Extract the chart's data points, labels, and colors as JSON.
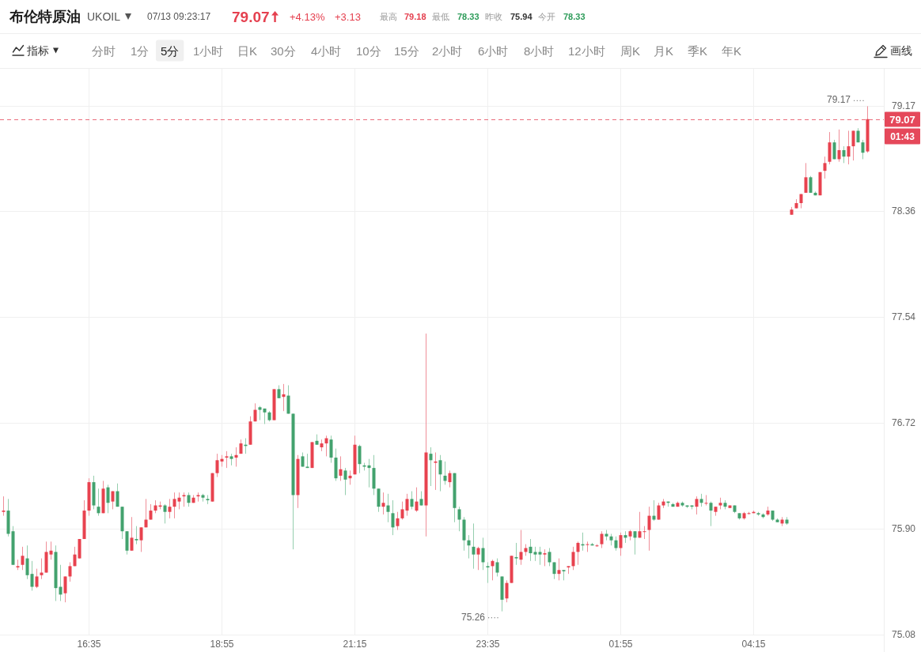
{
  "chart_data": {
    "type": "candlestick",
    "title": "布伦特原油",
    "subtitle": "UKOIL",
    "categories": [
      null,
      null,
      null,
      null,
      null,
      null,
      null,
      null,
      null,
      null,
      null,
      null,
      null,
      null,
      null,
      null,
      null,
      null,
      "16:35",
      null,
      null,
      null,
      null,
      null,
      null,
      null,
      null,
      null,
      null,
      null,
      null,
      null,
      null,
      null,
      null,
      null,
      null,
      null,
      null,
      null,
      null,
      null,
      null,
      null,
      null,
      null,
      "18:55",
      null,
      null,
      null,
      null,
      null,
      null,
      null,
      null,
      null,
      null,
      null,
      null,
      null,
      null,
      null,
      null,
      null,
      null,
      null,
      null,
      null,
      null,
      null,
      null,
      null,
      null,
      null,
      "21:15",
      null,
      null,
      null,
      null,
      null,
      null,
      null,
      null,
      null,
      null,
      null,
      null,
      null,
      null,
      null,
      null,
      null,
      null,
      null,
      null,
      null,
      null,
      null,
      null,
      null,
      null,
      null,
      "23:35",
      null,
      null,
      null,
      null,
      null,
      null,
      null,
      null,
      null,
      null,
      null,
      null,
      null,
      null,
      null,
      null,
      null,
      null,
      null,
      null,
      null,
      null,
      null,
      null,
      null,
      null,
      null,
      "01:55",
      null,
      null,
      null,
      null,
      null,
      null,
      null,
      null,
      null,
      null,
      null,
      null,
      null,
      null,
      null,
      null,
      null,
      null,
      null,
      null,
      null,
      null,
      null,
      null,
      null,
      null,
      null,
      "04:15",
      null,
      null,
      null,
      null,
      null,
      null,
      null,
      null,
      null,
      null,
      null,
      null,
      null,
      null,
      null,
      null,
      null,
      null,
      null,
      null,
      null,
      null,
      null,
      null
    ],
    "ohlc": [
      [
        76.03,
        76.15,
        76.0,
        76.04
      ],
      [
        76.04,
        76.13,
        75.84,
        75.86
      ],
      [
        75.88,
        75.92,
        75.62,
        75.62
      ],
      [
        75.6,
        75.66,
        75.58,
        75.61
      ],
      [
        75.62,
        75.76,
        75.58,
        75.69
      ],
      [
        75.67,
        75.77,
        75.51,
        75.54
      ],
      [
        75.55,
        75.65,
        75.42,
        75.45
      ],
      [
        75.45,
        75.59,
        75.44,
        75.53
      ],
      [
        75.54,
        75.67,
        75.51,
        75.56
      ],
      [
        75.56,
        75.8,
        75.56,
        75.72
      ],
      [
        75.7,
        75.8,
        75.66,
        75.73
      ],
      [
        75.72,
        75.77,
        75.34,
        75.44
      ],
      [
        75.45,
        75.62,
        75.34,
        75.39
      ],
      [
        75.4,
        75.53,
        75.33,
        75.53
      ],
      [
        75.53,
        75.64,
        75.49,
        75.61
      ],
      [
        75.61,
        75.76,
        75.61,
        75.7
      ],
      [
        75.67,
        75.82,
        75.67,
        75.82
      ],
      [
        75.82,
        76.12,
        75.82,
        76.04
      ],
      [
        76.04,
        76.29,
        76.0,
        76.26
      ],
      [
        76.26,
        76.31,
        76.05,
        76.08
      ],
      [
        76.07,
        76.21,
        76.0,
        76.02
      ],
      [
        76.02,
        76.27,
        76.02,
        76.21
      ],
      [
        76.22,
        76.24,
        76.02,
        76.1
      ],
      [
        76.11,
        76.19,
        76.05,
        76.19
      ],
      [
        76.19,
        76.25,
        76.07,
        76.07
      ],
      [
        76.07,
        76.07,
        75.82,
        75.88
      ],
      [
        75.88,
        75.88,
        75.7,
        75.73
      ],
      [
        75.73,
        75.99,
        75.73,
        75.83
      ],
      [
        75.82,
        75.92,
        75.78,
        75.81
      ],
      [
        75.81,
        75.91,
        75.72,
        75.91
      ],
      [
        75.91,
        76.13,
        75.91,
        75.97
      ],
      [
        75.97,
        76.09,
        75.97,
        76.04
      ],
      [
        76.04,
        76.12,
        76.02,
        76.08
      ],
      [
        76.07,
        76.11,
        76.05,
        76.08
      ],
      [
        76.08,
        76.09,
        75.94,
        76.03
      ],
      [
        76.03,
        76.13,
        75.98,
        76.07
      ],
      [
        76.07,
        76.18,
        75.98,
        76.13
      ],
      [
        76.11,
        76.18,
        76.05,
        76.14
      ],
      [
        76.15,
        76.18,
        76.07,
        76.16
      ],
      [
        76.16,
        76.18,
        76.07,
        76.1
      ],
      [
        76.1,
        76.16,
        76.1,
        76.14
      ],
      [
        76.15,
        76.18,
        76.11,
        76.16
      ],
      [
        76.16,
        76.17,
        76.11,
        76.14
      ],
      [
        76.13,
        76.16,
        76.09,
        76.12
      ],
      [
        76.11,
        76.33,
        76.11,
        76.33
      ],
      [
        76.33,
        76.48,
        76.3,
        76.43
      ],
      [
        76.42,
        76.47,
        76.38,
        76.44
      ],
      [
        76.45,
        76.5,
        76.37,
        76.46
      ],
      [
        76.46,
        76.48,
        76.39,
        76.44
      ],
      [
        76.45,
        76.53,
        76.38,
        76.47
      ],
      [
        76.48,
        76.59,
        76.48,
        76.56
      ],
      [
        76.55,
        76.6,
        76.48,
        76.54
      ],
      [
        76.55,
        76.77,
        76.55,
        76.73
      ],
      [
        76.73,
        76.87,
        76.73,
        76.82
      ],
      [
        76.84,
        76.85,
        76.74,
        76.82
      ],
      [
        76.83,
        76.83,
        76.71,
        76.8
      ],
      [
        76.8,
        76.81,
        76.73,
        76.74
      ],
      [
        76.74,
        76.98,
        76.74,
        76.98
      ],
      [
        76.98,
        77.01,
        76.91,
        76.91
      ],
      [
        76.92,
        77.02,
        76.81,
        76.94
      ],
      [
        76.93,
        77.01,
        76.79,
        76.79
      ],
      [
        76.79,
        76.79,
        75.74,
        76.16
      ],
      [
        76.16,
        76.47,
        76.06,
        76.44
      ],
      [
        76.46,
        76.49,
        76.38,
        76.38
      ],
      [
        76.38,
        76.48,
        76.37,
        76.37
      ],
      [
        76.37,
        76.57,
        76.37,
        76.57
      ],
      [
        76.58,
        76.63,
        76.55,
        76.55
      ],
      [
        76.53,
        76.59,
        76.5,
        76.56
      ],
      [
        76.56,
        76.62,
        76.46,
        76.6
      ],
      [
        76.59,
        76.62,
        76.41,
        76.45
      ],
      [
        76.45,
        76.52,
        76.27,
        76.29
      ],
      [
        76.31,
        76.46,
        76.27,
        76.36
      ],
      [
        76.35,
        76.37,
        76.16,
        76.28
      ],
      [
        76.29,
        76.35,
        76.24,
        76.31
      ],
      [
        76.32,
        76.62,
        76.32,
        76.55
      ],
      [
        76.54,
        76.55,
        76.33,
        76.4
      ],
      [
        76.39,
        76.41,
        76.35,
        76.38
      ],
      [
        76.39,
        76.44,
        76.22,
        76.37
      ],
      [
        76.37,
        76.47,
        76.16,
        76.21
      ],
      [
        76.21,
        76.21,
        76.03,
        76.07
      ],
      [
        76.07,
        76.18,
        76.01,
        76.1
      ],
      [
        76.08,
        76.17,
        75.95,
        76.03
      ],
      [
        76.02,
        76.12,
        75.85,
        75.91
      ],
      [
        75.92,
        76.03,
        75.89,
        75.98
      ],
      [
        75.98,
        76.11,
        75.97,
        76.05
      ],
      [
        76.04,
        76.17,
        76.0,
        76.13
      ],
      [
        76.13,
        76.19,
        76.05,
        76.07
      ],
      [
        76.04,
        76.22,
        76.03,
        76.11
      ],
      [
        76.13,
        76.19,
        76.08,
        76.08
      ],
      [
        76.08,
        77.41,
        75.84,
        76.49
      ],
      [
        76.48,
        76.53,
        76.23,
        76.43
      ],
      [
        76.41,
        76.49,
        76.2,
        76.42
      ],
      [
        76.43,
        76.47,
        76.19,
        76.32
      ],
      [
        76.31,
        76.42,
        76.24,
        76.27
      ],
      [
        76.26,
        76.35,
        76.22,
        76.33
      ],
      [
        76.33,
        76.33,
        75.95,
        76.06
      ],
      [
        76.05,
        76.07,
        75.88,
        75.97
      ],
      [
        75.97,
        75.99,
        75.73,
        75.81
      ],
      [
        75.81,
        75.85,
        75.67,
        75.77
      ],
      [
        75.76,
        75.94,
        75.59,
        75.7
      ],
      [
        75.7,
        75.76,
        75.58,
        75.75
      ],
      [
        75.75,
        75.83,
        75.58,
        75.64
      ],
      [
        75.61,
        75.64,
        75.48,
        75.6
      ],
      [
        75.61,
        75.66,
        75.5,
        75.65
      ],
      [
        75.64,
        75.67,
        75.53,
        75.56
      ],
      [
        75.53,
        75.53,
        75.26,
        75.35
      ],
      [
        75.36,
        75.5,
        75.33,
        75.48
      ],
      [
        75.48,
        75.69,
        75.48,
        75.69
      ],
      [
        75.68,
        75.79,
        75.62,
        75.67
      ],
      [
        75.66,
        75.89,
        75.62,
        75.72
      ],
      [
        75.72,
        75.78,
        75.69,
        75.75
      ],
      [
        75.76,
        75.82,
        75.65,
        75.71
      ],
      [
        75.72,
        75.76,
        75.65,
        75.7
      ],
      [
        75.72,
        75.76,
        75.62,
        75.7
      ],
      [
        75.7,
        75.74,
        75.61,
        75.71
      ],
      [
        75.72,
        75.75,
        75.61,
        75.64
      ],
      [
        75.64,
        75.64,
        75.51,
        75.55
      ],
      [
        75.55,
        75.67,
        75.5,
        75.58
      ],
      [
        75.58,
        75.58,
        75.5,
        75.57
      ],
      [
        75.6,
        75.61,
        75.55,
        75.61
      ],
      [
        75.61,
        75.76,
        75.58,
        75.72
      ],
      [
        75.72,
        75.8,
        75.62,
        75.79
      ],
      [
        75.78,
        75.87,
        75.73,
        75.77
      ],
      [
        75.78,
        75.8,
        75.72,
        75.78
      ],
      [
        75.78,
        75.79,
        75.77,
        75.77
      ],
      [
        75.77,
        75.78,
        75.76,
        75.77
      ],
      [
        75.78,
        75.88,
        75.75,
        75.86
      ],
      [
        75.86,
        75.89,
        75.81,
        75.84
      ],
      [
        75.84,
        75.86,
        75.77,
        75.81
      ],
      [
        75.81,
        75.84,
        75.73,
        75.75
      ],
      [
        75.75,
        75.87,
        75.69,
        75.85
      ],
      [
        75.85,
        75.88,
        75.79,
        75.83
      ],
      [
        75.84,
        75.89,
        75.81,
        75.88
      ],
      [
        75.88,
        75.88,
        75.7,
        75.83
      ],
      [
        75.83,
        76.03,
        75.83,
        75.88
      ],
      [
        75.88,
        75.92,
        75.82,
        75.88
      ],
      [
        75.89,
        76.07,
        75.73,
        76.0
      ],
      [
        76.0,
        76.12,
        75.96,
        75.97
      ],
      [
        75.97,
        76.1,
        75.97,
        76.08
      ],
      [
        76.08,
        76.13,
        76.06,
        76.11
      ],
      [
        76.11,
        76.11,
        76.07,
        76.1
      ],
      [
        76.09,
        76.1,
        76.07,
        76.07
      ],
      [
        76.07,
        76.11,
        76.07,
        76.1
      ],
      [
        76.1,
        76.11,
        76.07,
        76.08
      ],
      [
        76.08,
        76.08,
        76.06,
        76.07
      ],
      [
        76.08,
        76.08,
        76.05,
        76.07
      ],
      [
        76.07,
        76.15,
        76.01,
        76.13
      ],
      [
        76.13,
        76.17,
        76.07,
        76.1
      ],
      [
        76.1,
        76.16,
        76.08,
        76.1
      ],
      [
        76.1,
        76.11,
        75.92,
        76.04
      ],
      [
        76.03,
        76.07,
        76.0,
        76.07
      ],
      [
        76.08,
        76.14,
        76.05,
        76.1
      ],
      [
        76.1,
        76.12,
        76.05,
        76.07
      ],
      [
        76.06,
        76.08,
        76.06,
        76.08
      ],
      [
        76.08,
        76.08,
        76.02,
        76.03
      ],
      [
        76.02,
        76.02,
        75.97,
        75.98
      ],
      [
        75.98,
        76.03,
        75.97,
        76.02
      ],
      [
        76.02,
        76.03,
        76.01,
        76.02
      ],
      [
        76.02,
        76.04,
        76.02,
        76.03
      ],
      [
        76.02,
        76.03,
        76.0,
        76.01
      ],
      [
        76.01,
        76.02,
        75.98,
        75.99
      ],
      [
        76.01,
        76.07,
        76.0,
        76.04
      ],
      [
        76.04,
        76.04,
        75.96,
        75.97
      ],
      [
        75.97,
        75.98,
        75.95,
        75.95
      ],
      [
        75.94,
        75.99,
        75.92,
        75.97
      ],
      [
        75.97,
        75.99,
        75.93,
        75.94
      ],
      [
        78.33,
        78.39,
        78.33,
        78.37
      ],
      [
        78.38,
        78.45,
        78.38,
        78.42
      ],
      [
        78.42,
        78.49,
        78.38,
        78.49
      ],
      [
        78.5,
        78.73,
        78.5,
        78.62
      ],
      [
        78.62,
        78.63,
        78.5,
        78.5
      ],
      [
        78.5,
        78.51,
        78.48,
        78.48
      ],
      [
        78.48,
        78.66,
        78.48,
        78.66
      ],
      [
        78.67,
        78.78,
        78.61,
        78.73
      ],
      [
        78.74,
        78.97,
        78.72,
        78.89
      ],
      [
        78.89,
        78.91,
        78.76,
        78.76
      ],
      [
        78.76,
        78.99,
        78.74,
        78.83
      ],
      [
        78.83,
        78.86,
        78.73,
        78.78
      ],
      [
        78.78,
        78.98,
        78.72,
        78.86
      ],
      [
        78.86,
        78.98,
        78.75,
        78.98
      ],
      [
        78.98,
        79.0,
        78.89,
        78.89
      ],
      [
        78.89,
        78.91,
        78.76,
        78.81
      ],
      [
        78.82,
        79.17,
        78.81,
        79.07
      ]
    ],
    "ylim": [
      75.08,
      79.46
    ],
    "yticks": [
      75.08,
      {
        "value": 75.9,
        "label": "75.90"
      },
      76.72,
      77.54,
      78.36,
      79.17
    ],
    "grid": true,
    "ref_lines": [
      {
        "axis": "y",
        "value": 79.07,
        "label": "79.07",
        "color": "#e5485a",
        "line_style": "dashed"
      }
    ],
    "annotations": [
      "07/13 09:23:17",
      "79.07",
      "+4.13%",
      "+3.13",
      "最高",
      "79.18",
      "最低",
      "78.33",
      "昨收",
      "75.94",
      "今开",
      "78.33",
      "指标",
      "分时",
      "1分",
      "5分",
      "1小时",
      "日K",
      "30分",
      "4小时",
      "10分",
      "15分",
      "2小时",
      "6小时",
      "8小时",
      "12小时",
      "周K",
      "月K",
      "季K",
      "年K",
      "画线",
      "01:43",
      "79.17",
      "75.26"
    ]
  }
}
